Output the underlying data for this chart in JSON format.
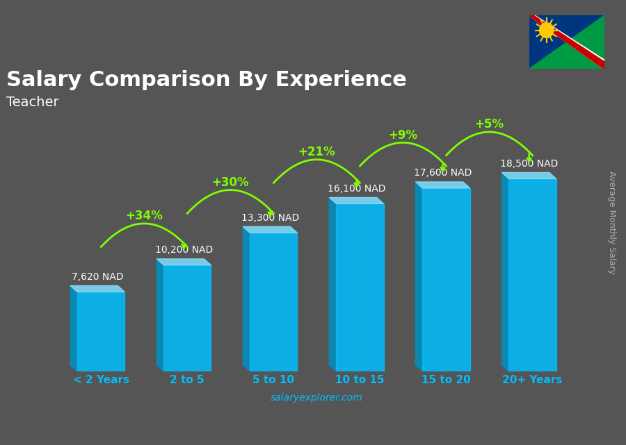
{
  "title": "Salary Comparison By Experience",
  "subtitle": "Teacher",
  "categories": [
    "< 2 Years",
    "2 to 5",
    "5 to 10",
    "10 to 15",
    "15 to 20",
    "20+ Years"
  ],
  "values": [
    7620,
    10200,
    13300,
    16100,
    17600,
    18500
  ],
  "labels": [
    "7,620 NAD",
    "10,200 NAD",
    "13,300 NAD",
    "16,100 NAD",
    "17,600 NAD",
    "18,500 NAD"
  ],
  "pct_labels": [
    "+34%",
    "+30%",
    "+21%",
    "+9%",
    "+5%"
  ],
  "bar_color_face": "#00BFFF",
  "bar_color_left": "#0090C0",
  "bar_color_top": "#80DFFF",
  "title_color": "#FFFFFF",
  "subtitle_color": "#FFFFFF",
  "label_color": "#FFFFFF",
  "pct_color": "#7FFF00",
  "xticklabel_color": "#00BFFF",
  "watermark": "salaryexplorer.com",
  "watermark_color": "#00BFFF",
  "ylabel_text": "Average Monthly Salary",
  "ylabel_color": "#AAAAAA",
  "bg_color": "#555555"
}
